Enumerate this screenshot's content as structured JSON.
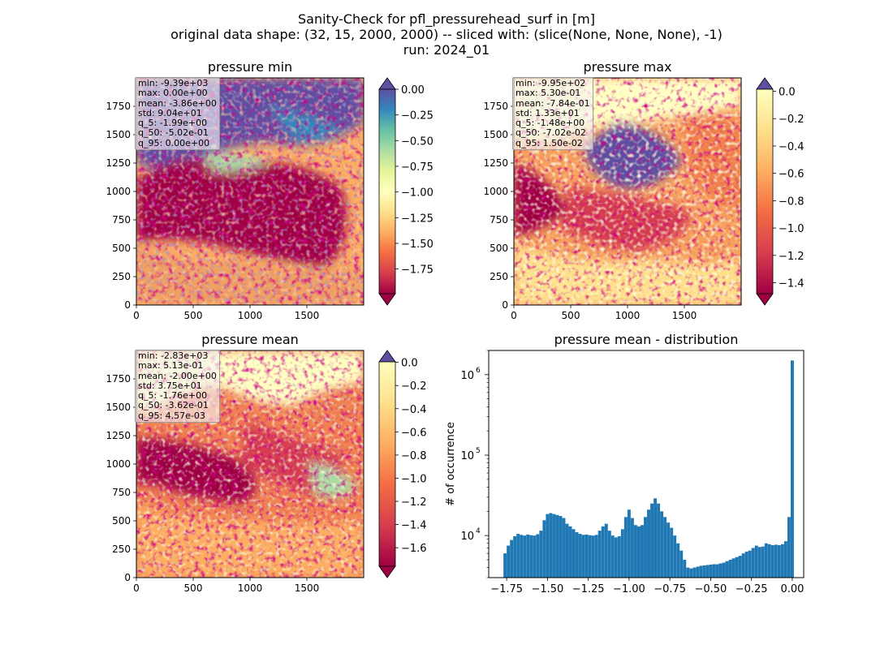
{
  "figure": {
    "title_lines": [
      "Sanity-Check for pfl_pressurehead_surf in [m]",
      "original data shape: (32, 15, 2000, 2000) -- sliced with: (slice(None, None, None), -1)",
      "run: 2024_01"
    ]
  },
  "panels": {
    "min": {
      "title": "pressure min",
      "stats": [
        "min: -9.39e+03",
        "max: 0.00e+00",
        "mean: -3.86e+00",
        "std: 9.04e+01",
        "q_5: -1.99e+00",
        "q_50: -5.02e-01",
        "q_95: 0.00e+00"
      ],
      "x_ticks": [
        "0",
        "500",
        "1000",
        "1500"
      ],
      "y_ticks": [
        "0",
        "250",
        "500",
        "750",
        "1000",
        "1250",
        "1500",
        "1750"
      ],
      "colorbar": {
        "ticks": [
          "0.00",
          "−0.25",
          "−0.50",
          "−0.75",
          "−1.00",
          "−1.25",
          "−1.50",
          "−1.75"
        ],
        "vmin": -1.99,
        "vmax": 0.0,
        "extend": "both"
      }
    },
    "max": {
      "title": "pressure max",
      "stats": [
        "min: -9.95e+02",
        "max: 5.30e-01",
        "mean: -7.84e-01",
        "std: 1.33e+01",
        "q_5: -1.48e+00",
        "q_50: -7.02e-02",
        "q_95: 1.50e-02"
      ],
      "x_ticks": [
        "0",
        "500",
        "1000",
        "1500"
      ],
      "y_ticks": [
        "0",
        "250",
        "500",
        "750",
        "1000",
        "1250",
        "1500",
        "1750"
      ],
      "colorbar": {
        "ticks": [
          "0.0",
          "−0.2",
          "−0.4",
          "−0.6",
          "−0.8",
          "−1.0",
          "−1.2",
          "−1.4"
        ],
        "vmin": -1.48,
        "vmax": 0.015,
        "extend": "both"
      }
    },
    "mean": {
      "title": "pressure mean",
      "stats": [
        "min: -2.83e+03",
        "max: 5.13e-01",
        "mean: -2.00e+00",
        "std: 3.75e+01",
        "q_5: -1.76e+00",
        "q_50: -3.62e-01",
        "q_95: 4.57e-03"
      ],
      "x_ticks": [
        "0",
        "500",
        "1000",
        "1500"
      ],
      "y_ticks": [
        "0",
        "250",
        "500",
        "750",
        "1000",
        "1250",
        "1500",
        "1750"
      ],
      "colorbar": {
        "ticks": [
          "0.0",
          "−0.2",
          "−0.4",
          "−0.6",
          "−0.8",
          "−1.0",
          "−1.2",
          "−1.4",
          "−1.6"
        ],
        "vmin": -1.76,
        "vmax": 0.00457,
        "extend": "both"
      }
    },
    "hist": {
      "title": "pressure mean - distribution",
      "ylabel": "# of occurrence",
      "x_ticks": [
        "−1.75",
        "−1.50",
        "−1.25",
        "−1.00",
        "−0.75",
        "−0.50",
        "−0.25",
        "0.00"
      ],
      "y_ticks": [
        "10",
        "10",
        "10"
      ],
      "y_tick_exponents": [
        "4",
        "5",
        "6"
      ]
    }
  },
  "chart_data": [
    {
      "type": "heatmap",
      "title": "pressure min",
      "xlim": [
        0,
        2000
      ],
      "ylim": [
        0,
        2000
      ],
      "colormap": "Spectral",
      "clim": [
        -1.99,
        0.0
      ],
      "grid": false
    },
    {
      "type": "heatmap",
      "title": "pressure max",
      "xlim": [
        0,
        2000
      ],
      "ylim": [
        0,
        2000
      ],
      "colormap": "Spectral",
      "clim": [
        -1.48,
        0.015
      ],
      "grid": false
    },
    {
      "type": "heatmap",
      "title": "pressure mean",
      "xlim": [
        0,
        2000
      ],
      "ylim": [
        0,
        2000
      ],
      "colormap": "Spectral",
      "clim": [
        -1.76,
        0.00457
      ],
      "grid": false
    },
    {
      "type": "bar",
      "title": "pressure mean - distribution",
      "ylabel": "# of occurrence",
      "yscale": "log",
      "xlim": [
        -1.86,
        0.07
      ],
      "ylim": [
        3000,
        2000000
      ],
      "color": "#1f77b4",
      "x": [
        -1.76,
        -1.74,
        -1.72,
        -1.7,
        -1.68,
        -1.66,
        -1.64,
        -1.62,
        -1.6,
        -1.58,
        -1.56,
        -1.54,
        -1.52,
        -1.5,
        -1.48,
        -1.46,
        -1.44,
        -1.42,
        -1.4,
        -1.38,
        -1.36,
        -1.34,
        -1.32,
        -1.3,
        -1.28,
        -1.26,
        -1.24,
        -1.22,
        -1.2,
        -1.18,
        -1.16,
        -1.14,
        -1.12,
        -1.1,
        -1.08,
        -1.06,
        -1.04,
        -1.02,
        -1.0,
        -0.98,
        -0.96,
        -0.94,
        -0.92,
        -0.9,
        -0.88,
        -0.86,
        -0.84,
        -0.82,
        -0.8,
        -0.78,
        -0.76,
        -0.74,
        -0.72,
        -0.7,
        -0.68,
        -0.66,
        -0.64,
        -0.62,
        -0.6,
        -0.58,
        -0.56,
        -0.54,
        -0.52,
        -0.5,
        -0.48,
        -0.46,
        -0.44,
        -0.42,
        -0.4,
        -0.38,
        -0.36,
        -0.34,
        -0.32,
        -0.3,
        -0.28,
        -0.26,
        -0.24,
        -0.22,
        -0.2,
        -0.18,
        -0.16,
        -0.14,
        -0.12,
        -0.1,
        -0.08,
        -0.06,
        -0.04,
        -0.02,
        0.0
      ],
      "values": [
        6000,
        7500,
        8800,
        9800,
        10500,
        10200,
        10000,
        10300,
        10100,
        10000,
        10400,
        11500,
        15500,
        18500,
        19000,
        18500,
        18000,
        17500,
        16500,
        14000,
        13000,
        12000,
        11000,
        10500,
        10200,
        10300,
        10100,
        10000,
        10200,
        11500,
        13000,
        14000,
        11500,
        10000,
        9500,
        9800,
        12000,
        17000,
        21000,
        16500,
        13500,
        13000,
        13500,
        17000,
        21000,
        25000,
        29000,
        25000,
        20000,
        17000,
        14500,
        12500,
        10000,
        8000,
        6500,
        5000,
        4000,
        3900,
        4000,
        4100,
        4200,
        4250,
        4300,
        4350,
        4400,
        4400,
        4500,
        4600,
        4800,
        5000,
        5200,
        5400,
        5600,
        6000,
        6300,
        6500,
        7000,
        7500,
        7200,
        7300,
        8000,
        7800,
        7600,
        7700,
        7600,
        7800,
        8500,
        17000,
        1500000
      ]
    }
  ]
}
